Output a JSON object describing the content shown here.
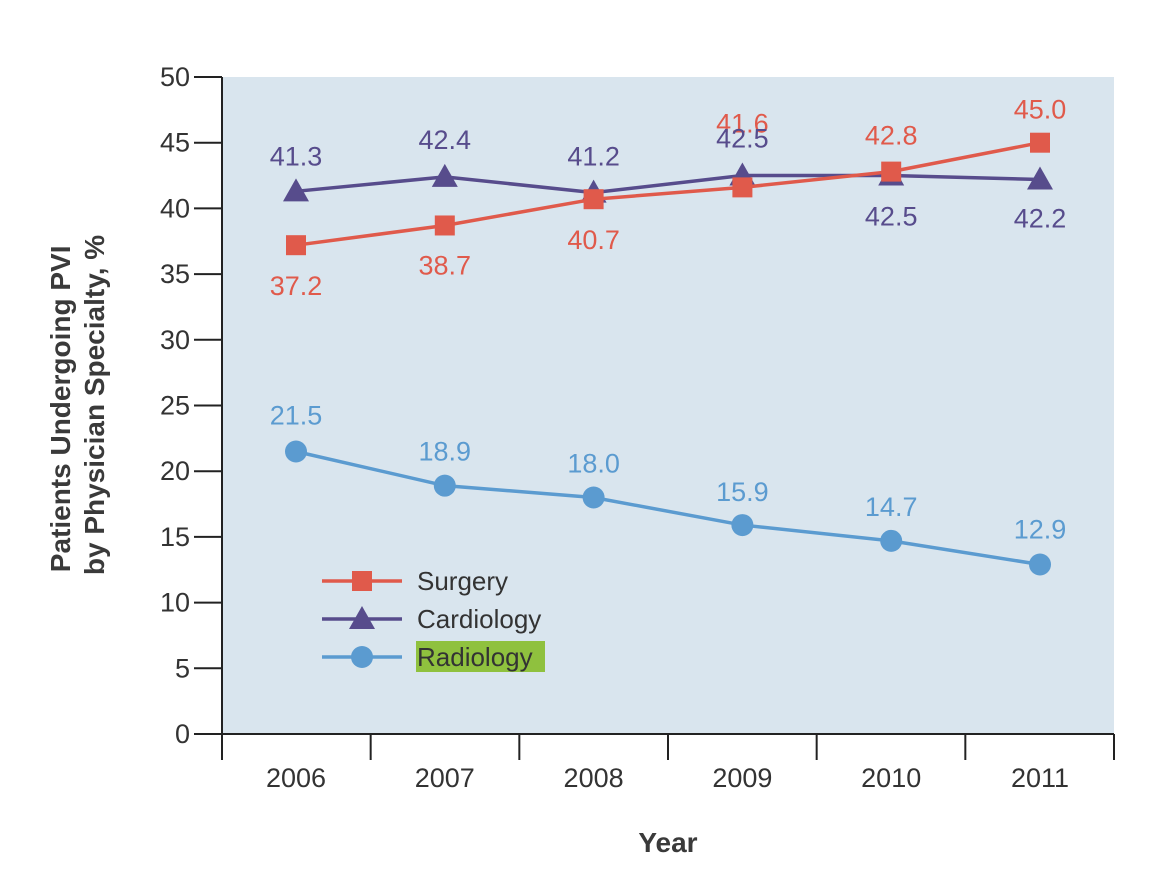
{
  "chart_data": {
    "type": "line",
    "title": "",
    "xlabel": "Year",
    "ylabel": [
      "Patients Undergoing PVI",
      "by Physician Specialty, %"
    ],
    "categories": [
      "2006",
      "2007",
      "2008",
      "2009",
      "2010",
      "2011"
    ],
    "ylim": [
      0,
      50
    ],
    "yticks": [
      "0",
      "5",
      "10",
      "15",
      "20",
      "25",
      "30",
      "35",
      "40",
      "45",
      "50"
    ],
    "grid": false,
    "legend_position": "lower-left",
    "series": [
      {
        "name": "Surgery",
        "marker": "square",
        "color": "#e05a4b",
        "values": [
          37.2,
          38.7,
          40.7,
          41.6,
          42.8,
          45.0
        ],
        "labels": [
          "37.2",
          "38.7",
          "40.7",
          "41.6",
          "42.8",
          "45.0"
        ],
        "label_highlight": false
      },
      {
        "name": "Cardiology",
        "marker": "triangle",
        "color": "#574c8c",
        "values": [
          41.3,
          42.4,
          41.2,
          42.5,
          42.5,
          42.2
        ],
        "labels": [
          "41.3",
          "42.4",
          "41.2",
          "42.5",
          "42.5",
          "42.2"
        ],
        "label_highlight": false
      },
      {
        "name": "Radiology",
        "marker": "circle",
        "color": "#5b9bd0",
        "values": [
          21.5,
          18.9,
          18.0,
          15.9,
          14.7,
          12.9
        ],
        "labels": [
          "21.5",
          "18.9",
          "18.0",
          "15.9",
          "14.7",
          "12.9"
        ],
        "label_highlight": true
      }
    ],
    "plot_background": "#d9e5ee",
    "legend_highlight_color": "#8fc13e"
  }
}
